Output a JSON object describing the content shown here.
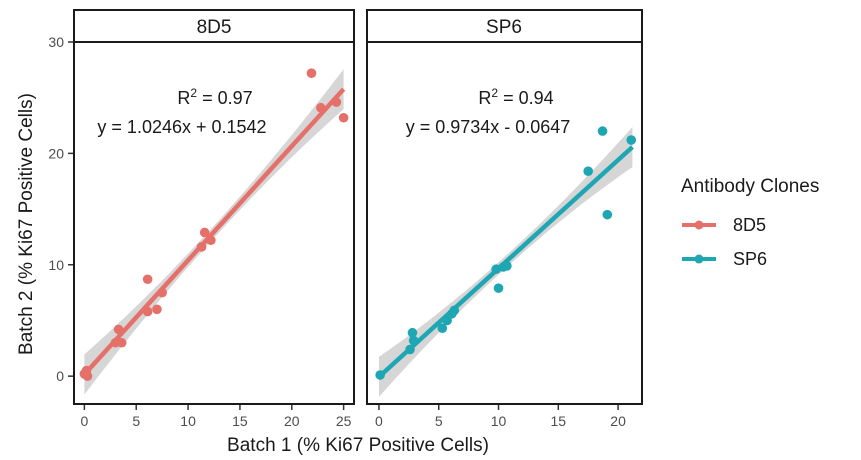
{
  "chart_data": {
    "type": "scatter",
    "xlabel": "Batch 1 (% Ki67 Positive Cells)",
    "ylabel": "Batch 2 (% Ki67 Positive Cells)",
    "xlim": [
      -1,
      22
    ],
    "ylim": [
      -2.5,
      30
    ],
    "xticks": [
      0,
      5,
      10,
      15,
      20
    ],
    "yticks": [
      0,
      10,
      20,
      30
    ],
    "xtick_labels": [
      "0",
      "5",
      "10",
      "15",
      "20"
    ],
    "ytick_labels": [
      "0",
      "10",
      "20",
      "30"
    ],
    "grid": false,
    "legend": {
      "title": "Antibody Clones",
      "placement": "right",
      "entries": [
        "8D5",
        "SP6"
      ]
    },
    "panels": [
      {
        "strip": "8D5",
        "series": "8D5",
        "color": "#E5706A",
        "xlim": [
          -1,
          26
        ],
        "xticks": [
          0,
          5,
          10,
          15,
          20,
          25
        ],
        "xtick_labels": [
          "0",
          "5",
          "10",
          "15",
          "20",
          "25"
        ],
        "r2_label": "R",
        "r2_value": " = 0.97",
        "equation": "y = 1.0246x + 0.1542",
        "fit": {
          "slope": 1.0246,
          "intercept": 0.1542,
          "x_range": [
            0,
            25
          ]
        },
        "points": [
          [
            0.0,
            0.2
          ],
          [
            0.2,
            0.5
          ],
          [
            0.3,
            0.0
          ],
          [
            3.0,
            3.0
          ],
          [
            3.3,
            4.2
          ],
          [
            3.6,
            3.0
          ],
          [
            6.1,
            8.7
          ],
          [
            6.1,
            5.8
          ],
          [
            7.0,
            6.0
          ],
          [
            7.5,
            7.5
          ],
          [
            11.3,
            11.6
          ],
          [
            11.6,
            12.9
          ],
          [
            12.2,
            12.2
          ],
          [
            21.9,
            27.2
          ],
          [
            22.8,
            24.1
          ],
          [
            24.3,
            24.6
          ],
          [
            25.0,
            23.2
          ]
        ]
      },
      {
        "strip": "SP6",
        "series": "SP6",
        "color": "#1FA6B3",
        "xlim": [
          -1,
          22
        ],
        "xticks": [
          0,
          5,
          10,
          15,
          20
        ],
        "xtick_labels": [
          "0",
          "5",
          "10",
          "15",
          "20"
        ],
        "r2_label": "R",
        "r2_value": " = 0.94",
        "equation": "y = 0.9734x - 0.0647",
        "fit": {
          "slope": 0.9734,
          "intercept": -0.0647,
          "x_range": [
            0,
            21.2
          ]
        },
        "points": [
          [
            0.1,
            0.1
          ],
          [
            2.6,
            2.4
          ],
          [
            2.8,
            3.9
          ],
          [
            2.9,
            3.2
          ],
          [
            5.3,
            4.3
          ],
          [
            5.7,
            5.0
          ],
          [
            6.1,
            5.6
          ],
          [
            6.3,
            5.9
          ],
          [
            9.8,
            9.6
          ],
          [
            10.0,
            7.9
          ],
          [
            10.4,
            9.8
          ],
          [
            10.7,
            9.9
          ],
          [
            17.5,
            18.4
          ],
          [
            18.7,
            22.0
          ],
          [
            19.1,
            14.5
          ],
          [
            21.1,
            21.2
          ]
        ]
      }
    ]
  }
}
